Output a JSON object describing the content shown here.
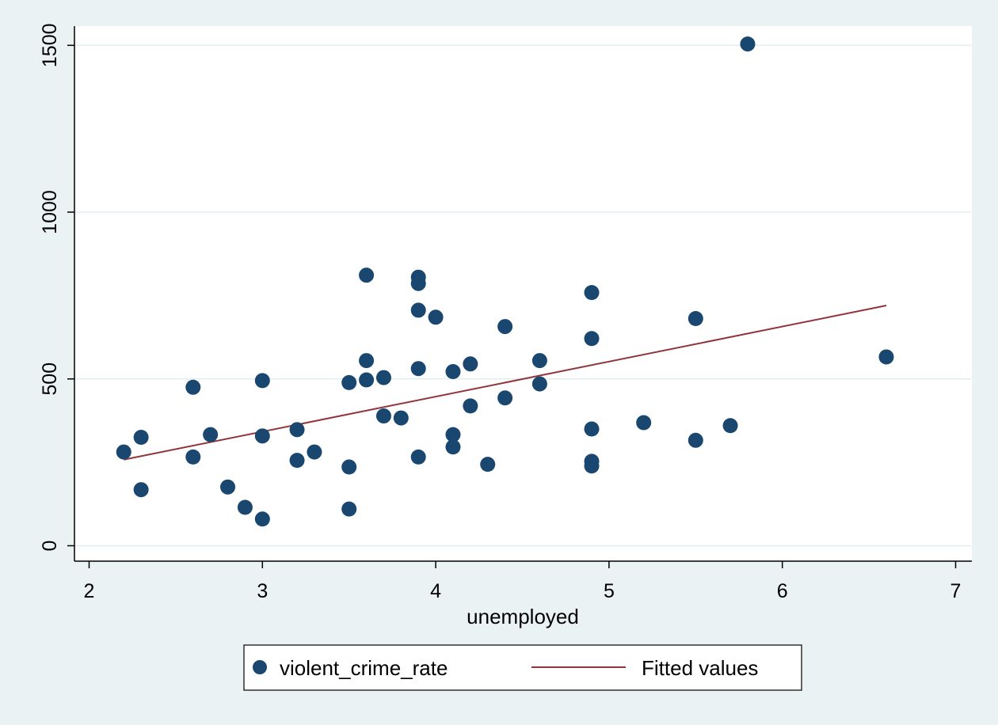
{
  "chart_data": {
    "type": "scatter",
    "xlabel": "unemployed",
    "ylabel": "",
    "xlim": [
      2,
      7
    ],
    "ylim": [
      0,
      1500
    ],
    "x_ticks": [
      2,
      3,
      4,
      5,
      6,
      7
    ],
    "y_ticks": [
      0,
      500,
      1000,
      1500
    ],
    "grid": true,
    "legend_position": "bottom",
    "series": [
      {
        "name": "violent_crime_rate",
        "type": "scatter",
        "color": "#1a476f",
        "points": [
          [
            2.2,
            281
          ],
          [
            2.3,
            325
          ],
          [
            2.3,
            168
          ],
          [
            2.6,
            475
          ],
          [
            2.6,
            266
          ],
          [
            2.7,
            333
          ],
          [
            2.8,
            176
          ],
          [
            2.9,
            115
          ],
          [
            3.0,
            495
          ],
          [
            3.0,
            329
          ],
          [
            3.0,
            80
          ],
          [
            3.2,
            348
          ],
          [
            3.2,
            256
          ],
          [
            3.3,
            281
          ],
          [
            3.5,
            489
          ],
          [
            3.5,
            236
          ],
          [
            3.5,
            110
          ],
          [
            3.6,
            811
          ],
          [
            3.6,
            555
          ],
          [
            3.6,
            497
          ],
          [
            3.7,
            504
          ],
          [
            3.7,
            389
          ],
          [
            3.8,
            383
          ],
          [
            3.9,
            805
          ],
          [
            3.9,
            786
          ],
          [
            3.9,
            706
          ],
          [
            3.9,
            531
          ],
          [
            3.9,
            266
          ],
          [
            4.0,
            685
          ],
          [
            4.1,
            522
          ],
          [
            4.1,
            333
          ],
          [
            4.1,
            296
          ],
          [
            4.2,
            545
          ],
          [
            4.2,
            419
          ],
          [
            4.3,
            244
          ],
          [
            4.4,
            657
          ],
          [
            4.4,
            443
          ],
          [
            4.6,
            555
          ],
          [
            4.6,
            485
          ],
          [
            4.9,
            759
          ],
          [
            4.9,
            621
          ],
          [
            4.9,
            350
          ],
          [
            4.9,
            253
          ],
          [
            4.9,
            239
          ],
          [
            5.2,
            369
          ],
          [
            5.5,
            681
          ],
          [
            5.5,
            316
          ],
          [
            5.7,
            360
          ],
          [
            5.8,
            1504
          ],
          [
            6.6,
            566
          ]
        ]
      },
      {
        "name": "Fitted values",
        "type": "line",
        "color": "#90353b",
        "points": [
          [
            2.2,
            258
          ],
          [
            6.6,
            720
          ]
        ]
      }
    ]
  }
}
